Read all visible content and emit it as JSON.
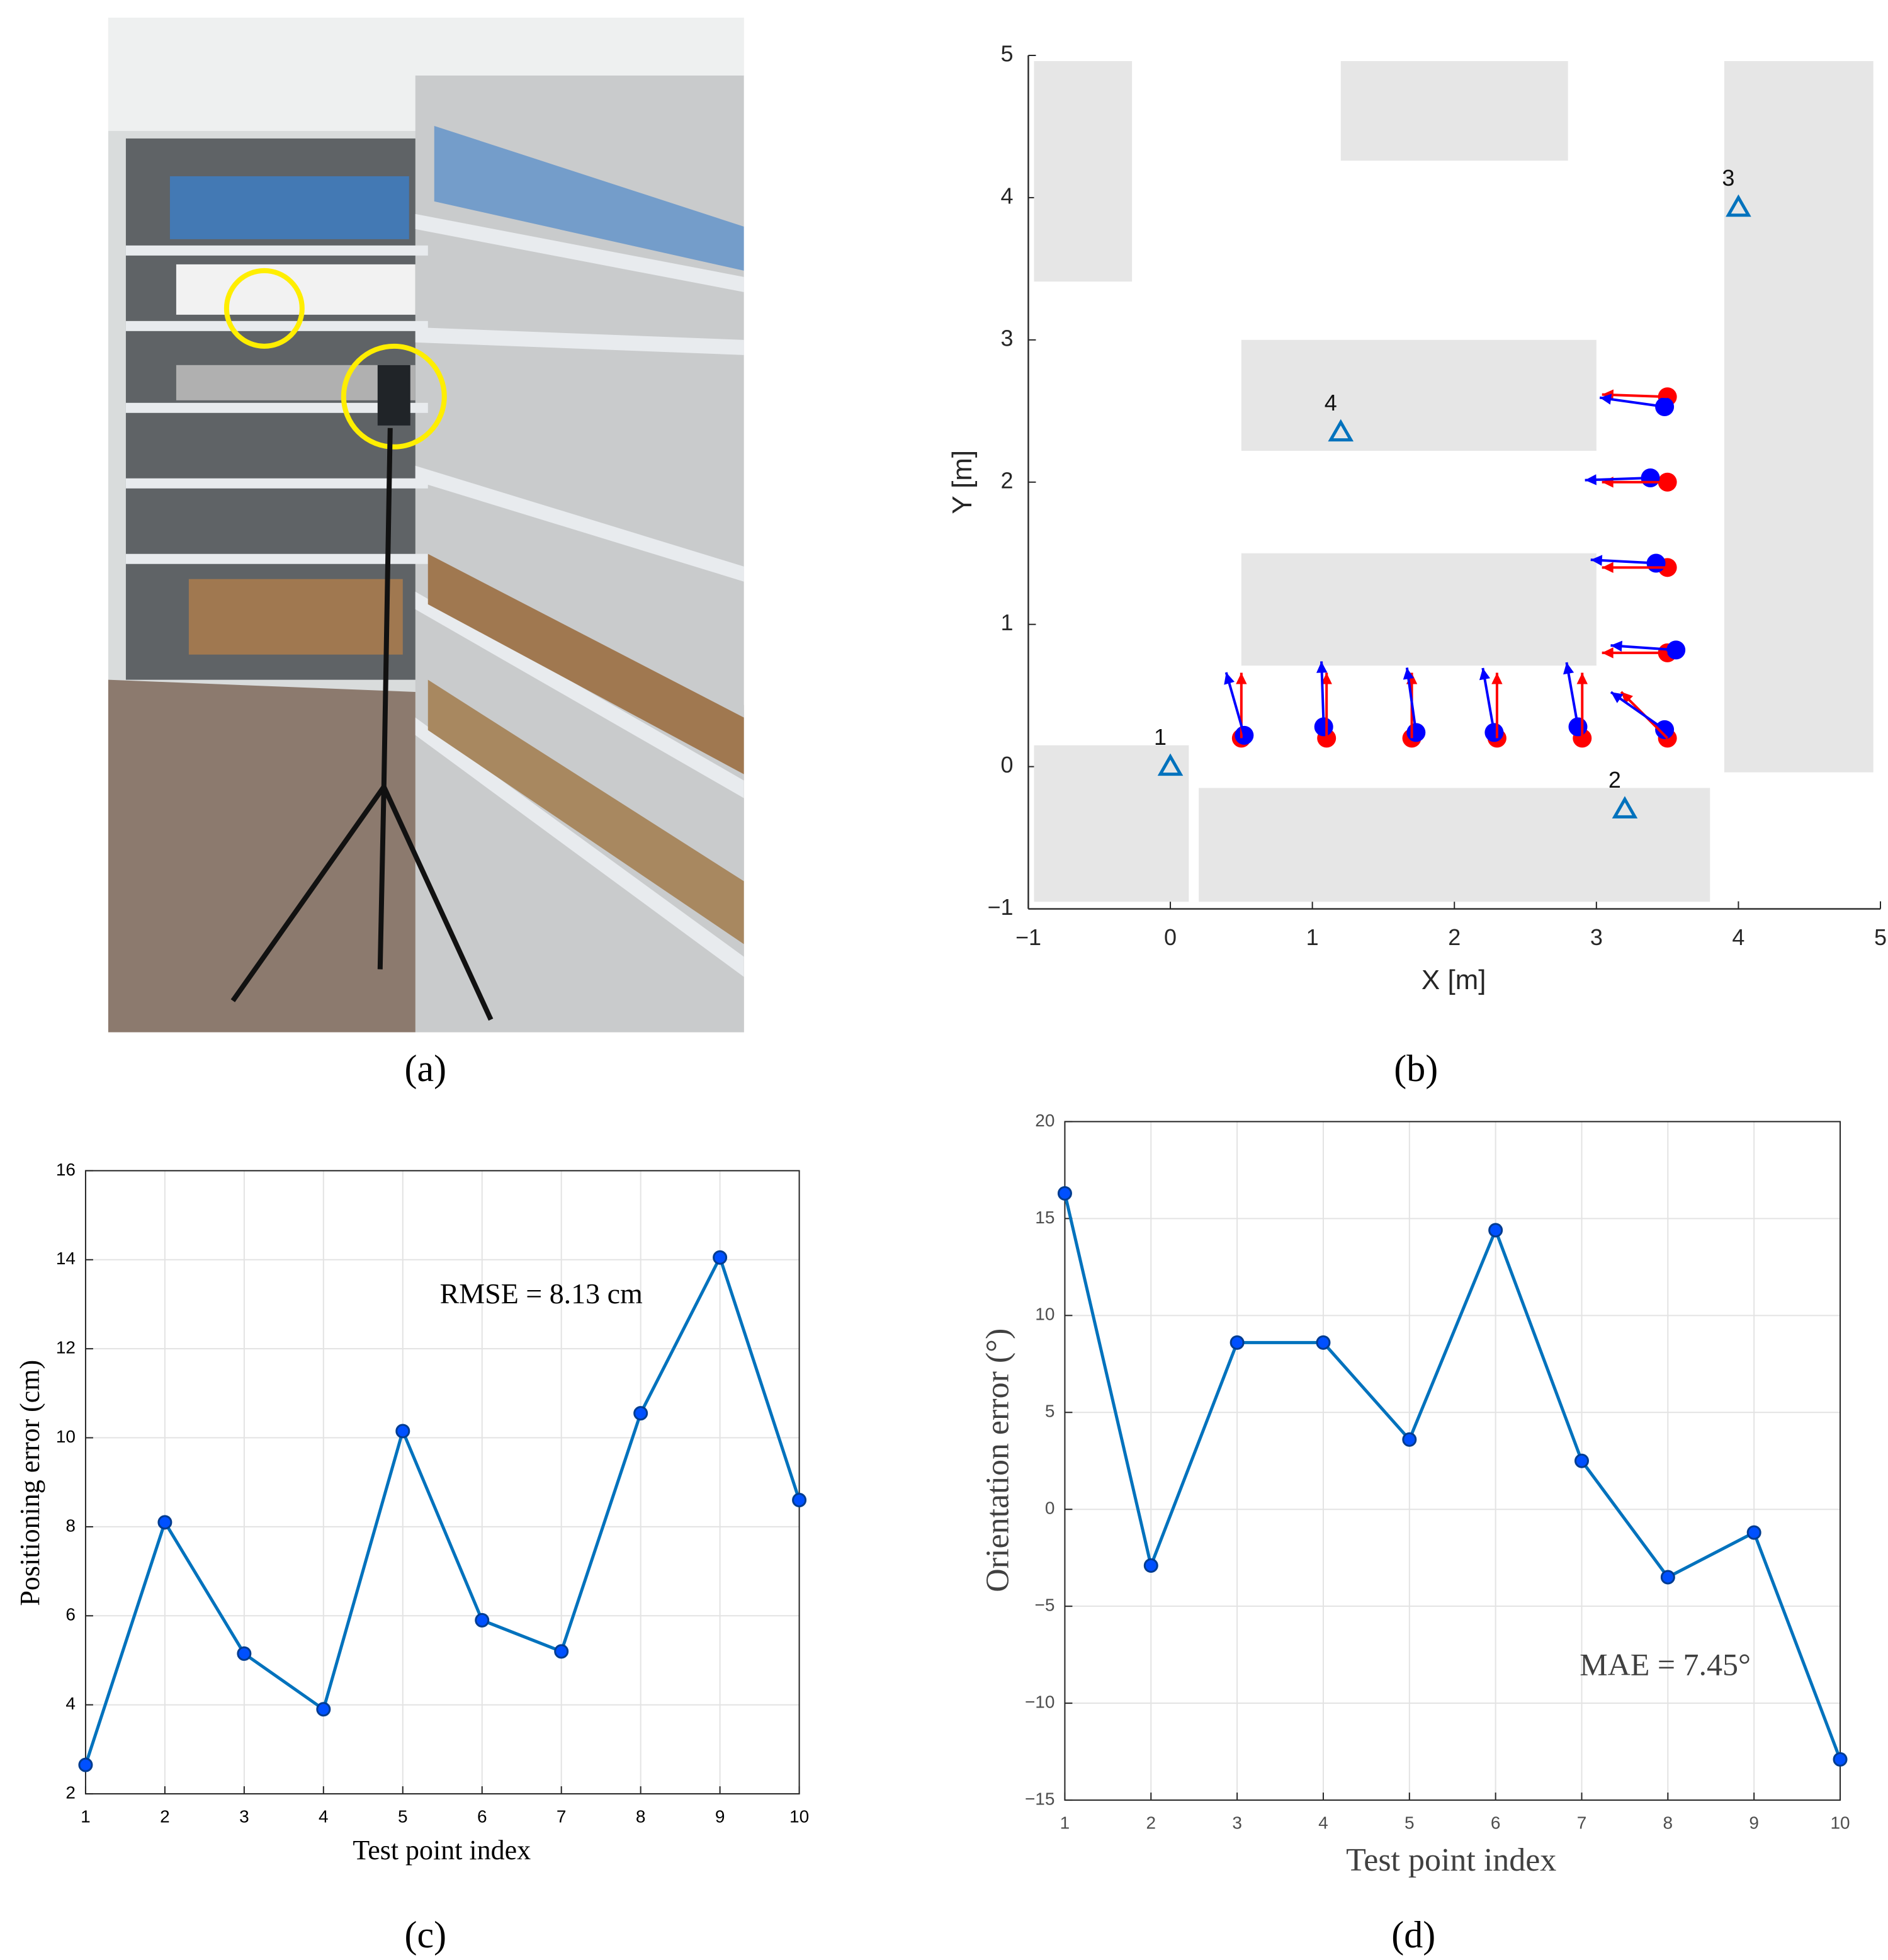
{
  "photo": {
    "label": "(a)"
  },
  "chart_data": [
    {
      "type": "scatter",
      "panel_label": "(b)",
      "xlabel": "X [m]",
      "ylabel": "Y [m]",
      "xlim": [
        -1,
        5
      ],
      "ylim": [
        -1,
        5
      ],
      "xticks": [
        {
          "value": -1,
          "label": "−1"
        },
        0,
        1,
        2,
        3,
        4,
        5
      ],
      "yticks": [
        {
          "value": -1,
          "label": "−1"
        },
        0,
        1,
        2,
        3,
        4,
        5
      ],
      "grid": false,
      "box": false,
      "obstacle_color": "#e6e6e6",
      "obstacles": [
        {
          "x": [
            -0.96,
            -0.27
          ],
          "y": [
            3.41,
            4.96
          ]
        },
        {
          "x": [
            1.2,
            2.8
          ],
          "y": [
            4.26,
            4.96
          ]
        },
        {
          "x": [
            3.9,
            4.95
          ],
          "y": [
            -0.04,
            4.96
          ]
        },
        {
          "x": [
            0.5,
            3.0
          ],
          "y": [
            2.22,
            3.0
          ]
        },
        {
          "x": [
            0.5,
            3.0
          ],
          "y": [
            0.71,
            1.5
          ]
        },
        {
          "x": [
            -0.96,
            0.13
          ],
          "y": [
            -0.95,
            0.15
          ]
        },
        {
          "x": [
            0.2,
            3.8
          ],
          "y": [
            -0.95,
            -0.15
          ]
        }
      ],
      "anchors": {
        "color": "#0072bd",
        "labels": [
          "1",
          "2",
          "3",
          "4"
        ],
        "x": [
          0,
          3.2,
          4.0,
          1.2
        ],
        "values": [
          0,
          -0.3,
          3.93,
          2.35
        ]
      },
      "series": [
        {
          "color": "#ff0000",
          "x": [
            0.5,
            1.1,
            1.7,
            2.3,
            2.9,
            3.5,
            3.5,
            3.5,
            3.5,
            3.5
          ],
          "values": [
            0.2,
            0.2,
            0.2,
            0.2,
            0.2,
            0.2,
            0.8,
            1.4,
            2.0,
            2.6
          ],
          "headings": [
            90,
            90,
            90,
            90,
            90,
            135,
            180,
            180,
            180,
            178
          ]
        },
        {
          "color": "#0000ff",
          "x": [
            0.52,
            1.08,
            1.73,
            2.28,
            2.87,
            3.48,
            3.56,
            3.42,
            3.38,
            3.48
          ],
          "values": [
            0.22,
            0.28,
            0.24,
            0.24,
            0.28,
            0.26,
            0.82,
            1.43,
            2.03,
            2.53
          ],
          "headings": [
            106,
            92,
            98,
            100,
            100,
            145,
            176,
            177,
            182,
            172
          ]
        }
      ]
    },
    {
      "type": "line",
      "panel_label": "(c)",
      "xlabel": "Test point index",
      "ylabel": "Positioning error (cm)",
      "annotation": "RMSE = 8.13 cm",
      "xlim": [
        1,
        10
      ],
      "ylim": [
        2,
        16
      ],
      "xticks": [
        1,
        2,
        3,
        4,
        5,
        6,
        7,
        8,
        9,
        10
      ],
      "yticks": [
        2,
        4,
        6,
        8,
        10,
        12,
        14,
        16
      ],
      "grid": true,
      "box": true,
      "color": "#0072bd",
      "x": [
        1,
        2,
        3,
        4,
        5,
        6,
        7,
        8,
        9,
        10
      ],
      "values": [
        2.65,
        8.1,
        5.15,
        3.9,
        10.15,
        5.9,
        5.2,
        10.55,
        14.05,
        8.6
      ]
    },
    {
      "type": "line",
      "panel_label": "(d)",
      "xlabel": "Test point index",
      "ylabel": "Orientation error (°)",
      "annotation": "MAE = 7.45°",
      "xlim": [
        1,
        10
      ],
      "ylim": [
        -15,
        20
      ],
      "xticks": [
        1,
        2,
        3,
        4,
        5,
        6,
        7,
        8,
        9,
        10
      ],
      "yticks": [
        {
          "value": -15,
          "label": "−15"
        },
        {
          "value": -10,
          "label": "−10"
        },
        {
          "value": -5,
          "label": "−5"
        },
        0,
        5,
        10,
        15,
        20
      ],
      "grid": true,
      "box": true,
      "color": "#0072bd",
      "x": [
        1,
        2,
        3,
        4,
        5,
        6,
        7,
        8,
        9,
        10
      ],
      "values": [
        16.3,
        -2.9,
        8.6,
        8.6,
        3.6,
        14.4,
        2.5,
        -3.5,
        -1.2,
        -12.9
      ]
    }
  ]
}
